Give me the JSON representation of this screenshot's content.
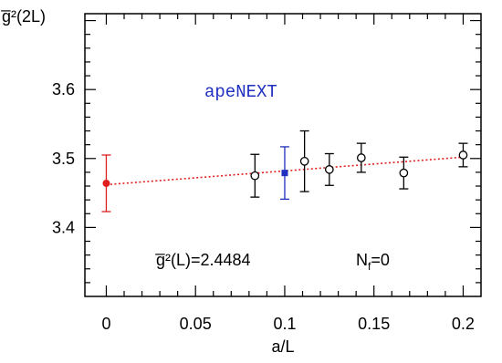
{
  "chart_data": {
    "type": "scatter",
    "xlabel": "a/L",
    "ylabel": "g̅²(2L)",
    "xlim": [
      -0.012,
      0.21
    ],
    "ylim": [
      3.3,
      3.71
    ],
    "x_ticks": [
      0,
      0.05,
      0.1,
      0.15,
      0.2
    ],
    "x_tick_labels": [
      "0",
      "0.05",
      "0.1",
      "0.15",
      "0.2"
    ],
    "y_ticks": [
      3.4,
      3.5,
      3.6
    ],
    "y_tick_labels": [
      "3.4",
      "3.5",
      "3.6"
    ],
    "series": [
      {
        "marker": "open-circle",
        "color": "#000000",
        "points": [
          {
            "x": 0.0833,
            "y": 3.475,
            "err": 0.031
          },
          {
            "x": 0.1111,
            "y": 3.496,
            "err": 0.044
          },
          {
            "x": 0.125,
            "y": 3.484,
            "err": 0.023
          },
          {
            "x": 0.1429,
            "y": 3.501,
            "err": 0.021
          },
          {
            "x": 0.1667,
            "y": 3.479,
            "err": 0.023
          },
          {
            "x": 0.2,
            "y": 3.505,
            "err": 0.017
          }
        ]
      },
      {
        "marker": "filled-square",
        "color": "#2030c0",
        "points": [
          {
            "x": 0.1,
            "y": 3.479,
            "err": 0.038
          }
        ]
      },
      {
        "marker": "filled-circle",
        "color": "#e02020",
        "points": [
          {
            "x": 0.0,
            "y": 3.464,
            "err": 0.041
          }
        ]
      }
    ],
    "fit_line": {
      "x0": 0.0,
      "y0": 3.462,
      "x1": 0.2,
      "y1": 3.502,
      "color": "#e02020",
      "style": "dotted"
    },
    "annotations": {
      "apenext": {
        "text": "apeNEXT",
        "color": "#2030c0"
      },
      "gbar": {
        "text": "g̅²(L)=2.4484"
      },
      "nf": {
        "text": "N",
        "sub": "f",
        "suffix": "=0"
      }
    }
  }
}
